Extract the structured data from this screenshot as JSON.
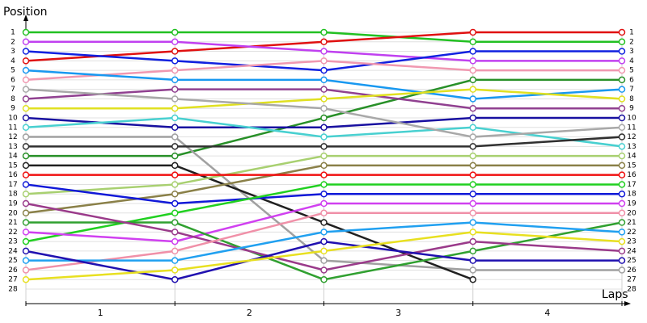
{
  "chart_data": {
    "type": "line",
    "ylabel": "Position",
    "xlabel": "Laps",
    "categories": [
      "1",
      "2",
      "3",
      "4"
    ],
    "x": [
      0,
      1,
      2,
      3,
      4
    ],
    "xlim": [
      0,
      4
    ],
    "ylim": [
      1,
      28
    ],
    "inverted": true,
    "yticks": [
      1,
      2,
      3,
      4,
      5,
      6,
      7,
      8,
      9,
      10,
      11,
      12,
      13,
      14,
      15,
      16,
      17,
      18,
      19,
      20,
      21,
      22,
      23,
      24,
      25,
      26,
      27,
      28
    ],
    "grid": true,
    "series": [
      {
        "color": "#22c022",
        "values": [
          1,
          1,
          1,
          2,
          2
        ]
      },
      {
        "color": "#e01010",
        "values": [
          4,
          3,
          2,
          1,
          1
        ]
      },
      {
        "color": "#c040f0",
        "values": [
          2,
          2,
          3,
          4,
          4
        ]
      },
      {
        "color": "#1020e0",
        "values": [
          3,
          4,
          5,
          3,
          3
        ]
      },
      {
        "color": "#f098b0",
        "values": [
          6,
          5,
          4,
          5,
          5
        ]
      },
      {
        "color": "#1898f0",
        "values": [
          5,
          6,
          6,
          8,
          7
        ]
      },
      {
        "color": "#289028",
        "values": [
          14,
          14,
          10,
          6,
          6
        ]
      },
      {
        "color": "#904090",
        "values": [
          8,
          7,
          7,
          9,
          9
        ]
      },
      {
        "color": "#e0e020",
        "values": [
          9,
          9,
          8,
          7,
          8
        ]
      },
      {
        "color": "#1810a0",
        "values": [
          10,
          11,
          11,
          10,
          10
        ]
      },
      {
        "color": "#48d0d0",
        "values": [
          11,
          10,
          12,
          11,
          13
        ]
      },
      {
        "color": "#a0a0a0",
        "values": [
          12,
          12,
          25,
          26,
          26
        ]
      },
      {
        "color": "#a8a8a8",
        "values": [
          7,
          8,
          9,
          12,
          11
        ]
      },
      {
        "color": "#303030",
        "values": [
          13,
          13,
          13,
          13,
          12
        ]
      },
      {
        "color": "#202020",
        "values": [
          15,
          15,
          21,
          27,
          null
        ]
      },
      {
        "color": "#a8d070",
        "values": [
          18,
          17,
          14,
          14,
          14
        ]
      },
      {
        "color": "#8a8048",
        "values": [
          20,
          18,
          15,
          15,
          15
        ]
      },
      {
        "color": "#f01010",
        "values": [
          16,
          16,
          16,
          16,
          16
        ]
      },
      {
        "color": "#1018d8",
        "values": [
          17,
          19,
          18,
          18,
          18
        ]
      },
      {
        "color": "#20d020",
        "values": [
          23,
          20,
          17,
          17,
          17
        ]
      },
      {
        "color": "#d040f0",
        "values": [
          22,
          23,
          19,
          19,
          19
        ]
      },
      {
        "color": "#30a030",
        "values": [
          21,
          21,
          27,
          24,
          21
        ]
      },
      {
        "color": "#9a3a8a",
        "values": [
          19,
          22,
          26,
          23,
          24
        ]
      },
      {
        "color": "#f090a8",
        "values": [
          26,
          24,
          20,
          20,
          20
        ]
      },
      {
        "color": "#20a0f0",
        "values": [
          25,
          25,
          22,
          21,
          22
        ]
      },
      {
        "color": "#2010b0",
        "values": [
          24,
          27,
          23,
          25,
          25
        ]
      },
      {
        "color": "#e8e020",
        "values": [
          27,
          26,
          24,
          22,
          23
        ]
      }
    ]
  }
}
